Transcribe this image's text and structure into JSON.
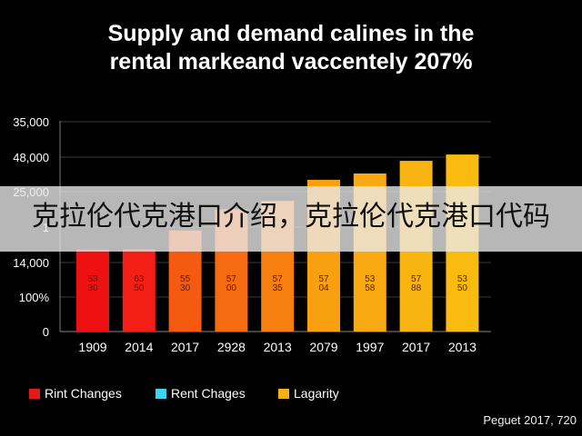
{
  "chart_data": {
    "type": "bar",
    "title": "Supply and demand calines in the rental markeand vaccentely 207%",
    "title_lines": [
      "Supply and demand calines in the",
      "rental markeand vaccentely 207%"
    ],
    "xlabel": "",
    "ylabel": "",
    "categories": [
      "1909",
      "2014",
      "2017",
      "2928",
      "2013",
      "2079",
      "1997",
      "2017",
      "2013"
    ],
    "values": [
      0.39,
      0.39,
      0.48,
      0.58,
      0.62,
      0.72,
      0.75,
      0.81,
      0.84
    ],
    "bar_colors": [
      "#ee1111",
      "#f31f17",
      "#f55b10",
      "#f66a12",
      "#f77f10",
      "#f9a011",
      "#f9aa12",
      "#f8b511",
      "#f9bb0f"
    ],
    "bar_labels": [
      [
        "53",
        "30"
      ],
      [
        "63",
        "50"
      ],
      [
        "55",
        "30"
      ],
      [
        "57",
        "00"
      ],
      [
        "57",
        "35"
      ],
      [
        "57",
        "04"
      ],
      [
        "53",
        "58"
      ],
      [
        "57",
        "88"
      ],
      [
        "53",
        "50"
      ]
    ],
    "y_ticks": [
      "0",
      "100%",
      "14,000",
      "1",
      "25,000",
      "48,000",
      "35,000"
    ],
    "grid": true,
    "legend_position": "bottom-left"
  },
  "legend": [
    {
      "label": "Rint Changes",
      "color": "#e11b1b"
    },
    {
      "label": "Rent Chages",
      "color": "#3fd3f0"
    },
    {
      "label": "Lagarity",
      "color": "#f3b116"
    }
  ],
  "banner": {
    "text": "克拉伦代克港口介绍，克拉伦代克港口代码"
  },
  "source": "Peguet 2017, 720"
}
